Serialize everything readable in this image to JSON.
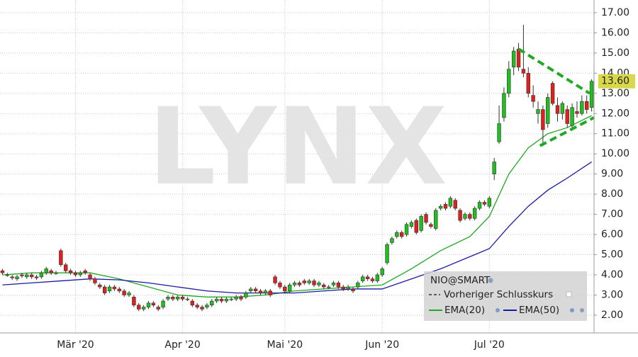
{
  "chart_data": {
    "type": "candlestick",
    "watermark": "LYNX",
    "categories": [
      null,
      null,
      null,
      null,
      null,
      null,
      null,
      null,
      null,
      null,
      null,
      null,
      null,
      null,
      null,
      "Mär '20",
      null,
      null,
      null,
      null,
      null,
      null,
      null,
      null,
      null,
      null,
      null,
      null,
      null,
      null,
      null,
      null,
      null,
      null,
      null,
      null,
      null,
      "Apr '20",
      null,
      null,
      null,
      null,
      null,
      null,
      null,
      null,
      null,
      null,
      null,
      null,
      null,
      null,
      null,
      null,
      null,
      null,
      null,
      null,
      "Mai '20",
      null,
      null,
      null,
      null,
      null,
      null,
      null,
      null,
      null,
      null,
      null,
      null,
      null,
      null,
      null,
      null,
      null,
      null,
      null,
      "Jun '20",
      null,
      null,
      null,
      null,
      null,
      null,
      null,
      null,
      null,
      null,
      null,
      null,
      null,
      null,
      null,
      null,
      null,
      null,
      null,
      null,
      null,
      "Jul '20",
      null,
      null,
      null,
      null,
      null,
      null,
      null,
      null,
      null,
      null,
      null,
      null,
      null,
      null,
      null,
      null,
      null,
      null,
      null,
      null,
      null
    ],
    "ohlc": {
      "name": "NIO@SMART",
      "up_color": "#1fbf1f",
      "down_color": "#e0201e",
      "outline_color": "#333333",
      "open": [
        4.2,
        4.0,
        3.9,
        3.8,
        4.0,
        3.9,
        4.0,
        3.9,
        3.9,
        4.1,
        4.2,
        4.1,
        5.2,
        4.5,
        4.2,
        4.1,
        4.0,
        4.2,
        4.0,
        3.8,
        3.5,
        3.4,
        3.2,
        3.4,
        3.3,
        3.2,
        3.0,
        2.9,
        2.5,
        2.3,
        2.4,
        2.6,
        2.4,
        2.4,
        2.8,
        2.9,
        2.8,
        2.9,
        2.8,
        2.7,
        2.5,
        2.4,
        2.4,
        2.5,
        2.7,
        2.8,
        2.7,
        2.8,
        2.8,
        2.9,
        2.9,
        3.2,
        3.3,
        3.2,
        3.1,
        3.2,
        3.9,
        3.6,
        3.4,
        3.2,
        3.5,
        3.6,
        3.7,
        3.6,
        3.7,
        3.5,
        3.5,
        3.4,
        3.5,
        3.6,
        3.4,
        3.3,
        3.3,
        3.4,
        3.7,
        3.9,
        3.8,
        3.7,
        4.0,
        4.6,
        5.6,
        5.9,
        6.1,
        6.0,
        6.4,
        6.7,
        6.2,
        7.0,
        6.5,
        6.3,
        7.3,
        7.5,
        7.4,
        7.7,
        7.2,
        6.8,
        7.0,
        6.8,
        7.3,
        7.6,
        7.4,
        9.0,
        10.6,
        11.8,
        13.0,
        14.3,
        15.2,
        14.2,
        14.0,
        12.9,
        12.0,
        12.2,
        11.5,
        13.5,
        12.4,
        12.0,
        12.2,
        11.4,
        12.1,
        12.0,
        12.6,
        12.3
      ],
      "high": [
        4.3,
        4.1,
        4.0,
        4.0,
        4.1,
        4.1,
        4.1,
        4.0,
        4.2,
        4.4,
        4.3,
        4.2,
        5.3,
        4.6,
        4.3,
        4.2,
        4.2,
        4.3,
        4.1,
        3.9,
        3.6,
        3.5,
        3.5,
        3.5,
        3.4,
        3.3,
        3.2,
        3.0,
        2.6,
        2.5,
        2.7,
        2.7,
        2.5,
        2.8,
        3.0,
        3.0,
        3.0,
        3.0,
        2.9,
        2.8,
        2.6,
        2.5,
        2.6,
        2.8,
        2.9,
        2.9,
        2.9,
        2.9,
        3.0,
        3.0,
        3.2,
        3.4,
        3.4,
        3.3,
        3.3,
        3.3,
        4.0,
        3.7,
        3.5,
        3.6,
        3.7,
        3.7,
        3.8,
        3.8,
        3.8,
        3.7,
        3.6,
        3.5,
        3.7,
        3.7,
        3.5,
        3.5,
        3.4,
        3.7,
        4.0,
        4.0,
        3.9,
        4.1,
        4.4,
        5.6,
        5.9,
        6.2,
        6.2,
        6.6,
        6.7,
        6.8,
        7.0,
        7.1,
        6.6,
        7.3,
        7.5,
        7.6,
        7.9,
        7.8,
        7.3,
        7.1,
        7.1,
        7.4,
        7.7,
        7.7,
        7.9,
        9.8,
        12.4,
        13.3,
        14.6,
        15.3,
        15.5,
        16.4,
        14.3,
        13.4,
        12.6,
        12.4,
        13.0,
        13.6,
        12.8,
        12.6,
        12.4,
        12.5,
        12.6,
        12.9,
        12.9,
        13.7
      ],
      "low": [
        4.0,
        3.9,
        3.75,
        3.7,
        3.85,
        3.8,
        3.8,
        3.75,
        3.8,
        4.0,
        4.0,
        4.0,
        4.4,
        4.1,
        4.0,
        3.9,
        3.9,
        4.0,
        3.7,
        3.5,
        3.3,
        3.0,
        3.1,
        3.2,
        3.1,
        2.9,
        2.9,
        2.4,
        2.2,
        2.2,
        2.3,
        2.4,
        2.2,
        2.3,
        2.7,
        2.7,
        2.7,
        2.7,
        2.7,
        2.4,
        2.3,
        2.2,
        2.3,
        2.4,
        2.6,
        2.6,
        2.6,
        2.7,
        2.7,
        2.7,
        2.8,
        3.1,
        3.1,
        3.0,
        3.0,
        2.9,
        3.5,
        3.3,
        3.1,
        3.1,
        3.4,
        3.4,
        3.5,
        3.5,
        3.4,
        3.4,
        3.3,
        3.3,
        3.4,
        3.3,
        3.2,
        3.2,
        3.1,
        3.3,
        3.6,
        3.7,
        3.6,
        3.6,
        3.9,
        4.5,
        5.5,
        5.8,
        5.8,
        5.9,
        6.3,
        6.0,
        6.1,
        6.5,
        6.3,
        6.2,
        7.2,
        7.2,
        7.3,
        7.2,
        6.6,
        6.7,
        6.7,
        6.7,
        7.2,
        7.4,
        7.3,
        8.7,
        10.5,
        11.6,
        12.8,
        13.9,
        14.1,
        13.8,
        12.8,
        12.3,
        11.5,
        10.4,
        11.3,
        12.4,
        11.6,
        11.7,
        11.3,
        11.2,
        11.8,
        11.9,
        12.0,
        12.1
      ],
      "close": [
        4.1,
        4.0,
        3.85,
        3.9,
        3.95,
        4.0,
        3.9,
        3.85,
        4.1,
        4.3,
        4.1,
        4.1,
        4.5,
        4.2,
        4.1,
        4.0,
        4.1,
        4.1,
        3.8,
        3.6,
        3.4,
        3.1,
        3.4,
        3.3,
        3.2,
        3.0,
        3.1,
        2.5,
        2.3,
        2.4,
        2.6,
        2.5,
        2.3,
        2.7,
        2.9,
        2.8,
        2.9,
        2.8,
        2.8,
        2.5,
        2.4,
        2.3,
        2.5,
        2.7,
        2.8,
        2.7,
        2.8,
        2.8,
        2.9,
        2.8,
        3.1,
        3.3,
        3.2,
        3.1,
        3.2,
        3.0,
        3.6,
        3.4,
        3.2,
        3.5,
        3.6,
        3.5,
        3.6,
        3.7,
        3.5,
        3.6,
        3.4,
        3.4,
        3.6,
        3.4,
        3.3,
        3.4,
        3.2,
        3.6,
        3.9,
        3.8,
        3.7,
        4.0,
        4.3,
        5.5,
        5.8,
        6.1,
        5.9,
        6.5,
        6.6,
        6.1,
        6.9,
        6.6,
        6.4,
        7.2,
        7.4,
        7.3,
        7.8,
        7.3,
        6.7,
        7.0,
        6.8,
        7.3,
        7.6,
        7.5,
        7.8,
        9.6,
        11.5,
        13.0,
        14.2,
        15.1,
        14.3,
        14.0,
        13.0,
        12.6,
        12.2,
        11.2,
        12.8,
        12.5,
        12.0,
        12.5,
        11.5,
        12.3,
        12.0,
        12.6,
        12.2,
        13.6
      ]
    },
    "previous_close_label": "Vorheriger Schlusskurs",
    "series": [
      {
        "name": "EMA(20)",
        "color": "#22a822",
        "x": [
          0,
          6,
          12,
          18,
          24,
          30,
          36,
          42,
          48,
          54,
          60,
          66,
          72,
          78,
          84,
          90,
          96,
          100,
          104,
          108,
          112,
          116,
          121
        ],
        "values": [
          4.0,
          4.1,
          4.1,
          4.1,
          3.8,
          3.4,
          3.0,
          2.9,
          2.9,
          3.0,
          3.2,
          3.3,
          3.4,
          3.5,
          4.3,
          5.2,
          5.9,
          6.9,
          9.0,
          10.3,
          11.0,
          11.3,
          11.9
        ]
      },
      {
        "name": "EMA(50)",
        "color": "#1a1aa8",
        "x": [
          0,
          6,
          12,
          18,
          24,
          30,
          36,
          42,
          48,
          54,
          60,
          66,
          72,
          78,
          84,
          90,
          96,
          100,
          104,
          108,
          112,
          116,
          121
        ],
        "values": [
          3.5,
          3.6,
          3.7,
          3.8,
          3.75,
          3.6,
          3.4,
          3.2,
          3.1,
          3.1,
          3.1,
          3.2,
          3.3,
          3.3,
          3.8,
          4.3,
          4.9,
          5.3,
          6.4,
          7.4,
          8.2,
          8.8,
          9.6
        ]
      }
    ],
    "trendlines": {
      "color": "#22a822",
      "lines": [
        {
          "x": [
            106,
            120.6
          ],
          "y": [
            15.2,
            13.0
          ]
        },
        {
          "x": [
            110.4,
            121.5
          ],
          "y": [
            10.4,
            11.8
          ]
        }
      ]
    },
    "last_price": {
      "value": 13.6,
      "label": "13.60",
      "color": "#d8d84a"
    },
    "ylim": [
      1.12,
      17.63
    ],
    "yticks": [
      {
        "value": 2,
        "label": "2.00"
      },
      {
        "value": 3,
        "label": "3.00"
      },
      {
        "value": 4,
        "label": "4.00"
      },
      {
        "value": 5,
        "label": "5.00"
      },
      {
        "value": 6,
        "label": "6.00"
      },
      {
        "value": 7,
        "label": "7.00"
      },
      {
        "value": 8,
        "label": "8.00"
      },
      {
        "value": 9,
        "label": "9.00"
      },
      {
        "value": 10,
        "label": "10.00"
      },
      {
        "value": 11,
        "label": "11.00"
      },
      {
        "value": 12,
        "label": "12.00"
      },
      {
        "value": 13,
        "label": "13.00"
      },
      {
        "value": 14,
        "label": "14.00"
      },
      {
        "value": 15,
        "label": "15.00"
      },
      {
        "value": 16,
        "label": "16.00"
      },
      {
        "value": 17,
        "label": "17.00"
      }
    ],
    "grid": true,
    "legend_position": "bottom-right"
  }
}
